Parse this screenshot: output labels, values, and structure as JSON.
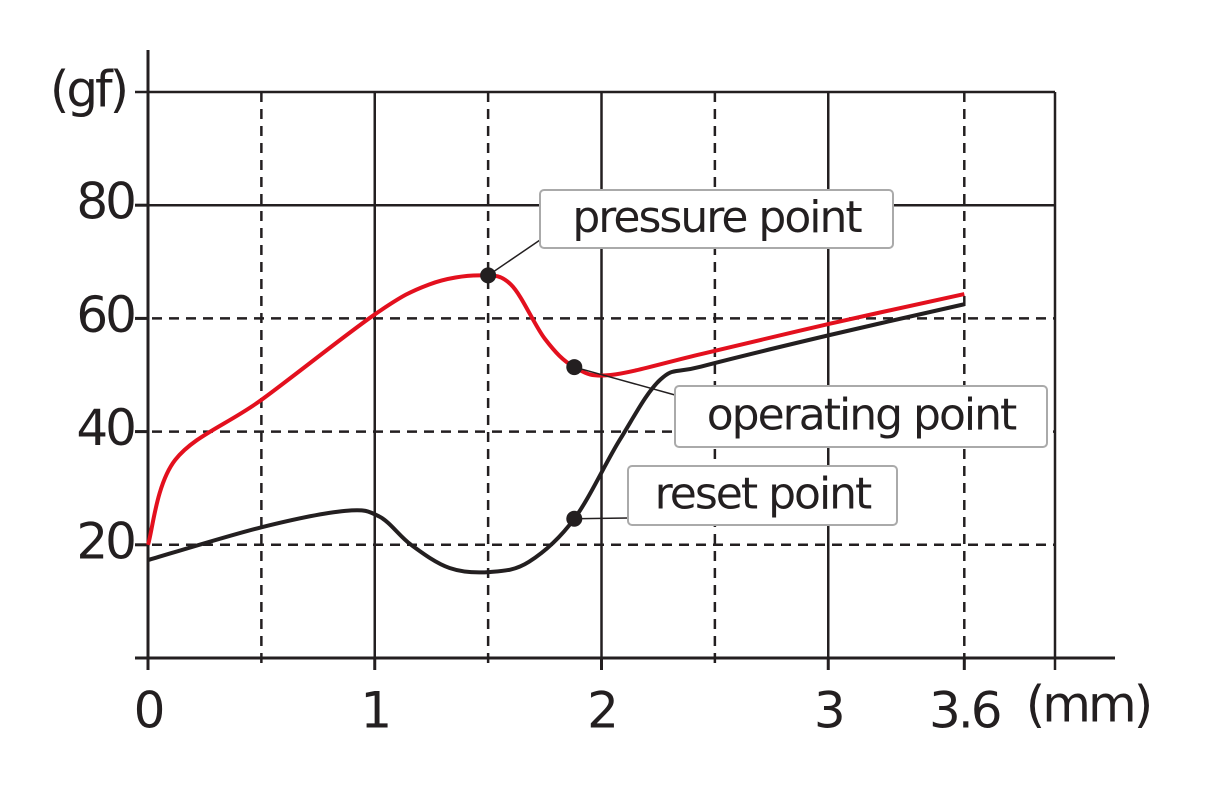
{
  "chart_data": {
    "type": "line",
    "xlabel": "(mm)",
    "ylabel": "(gf)",
    "xlim": [
      0,
      4
    ],
    "ylim": [
      0,
      100
    ],
    "xticks": [
      0,
      1,
      2,
      3,
      3.6
    ],
    "yticks": [
      20,
      40,
      60,
      80
    ],
    "xgrid": [
      {
        "value": 0.5,
        "style": "dashed"
      },
      {
        "value": 1,
        "style": "solid"
      },
      {
        "value": 1.5,
        "style": "dashed"
      },
      {
        "value": 2,
        "style": "solid"
      },
      {
        "value": 2.5,
        "style": "dashed"
      },
      {
        "value": 3,
        "style": "solid"
      },
      {
        "value": 3.6,
        "style": "dashed"
      },
      {
        "value": 4,
        "style": "solid"
      }
    ],
    "ygrid": [
      {
        "value": 20,
        "style": "dashed"
      },
      {
        "value": 40,
        "style": "dashed"
      },
      {
        "value": 60,
        "style": "dashed"
      },
      {
        "value": 80,
        "style": "solid"
      },
      {
        "value": 100,
        "style": "solid"
      }
    ],
    "series": [
      {
        "color": "#e3101e",
        "x": [
          0,
          0.12,
          0.5,
          1,
          1.24,
          1.46,
          1.6,
          1.75,
          1.88,
          2.04,
          2.44,
          3,
          3.6
        ],
        "values": [
          20,
          35,
          45.6,
          60.7,
          66,
          67.6,
          66,
          56.4,
          51.4,
          50,
          53.7,
          59,
          64.3
        ]
      },
      {
        "color": "#231f20",
        "x": [
          0,
          0.5,
          0.87,
          1.02,
          1.16,
          1.33,
          1.51,
          1.68,
          1.88,
          2.08,
          2.26,
          2.44,
          3,
          3.6
        ],
        "values": [
          17.3,
          23.1,
          26,
          25,
          20,
          15.9,
          15.2,
          17,
          24.6,
          38.5,
          49.2,
          51.5,
          57,
          62.5
        ]
      }
    ],
    "annotations": [
      {
        "text": "pressure point",
        "x": 1.5,
        "y": 67.6
      },
      {
        "text": "operating point",
        "x": 1.88,
        "y": 51.4
      },
      {
        "text": "reset point",
        "x": 1.88,
        "y": 24.6
      }
    ]
  }
}
